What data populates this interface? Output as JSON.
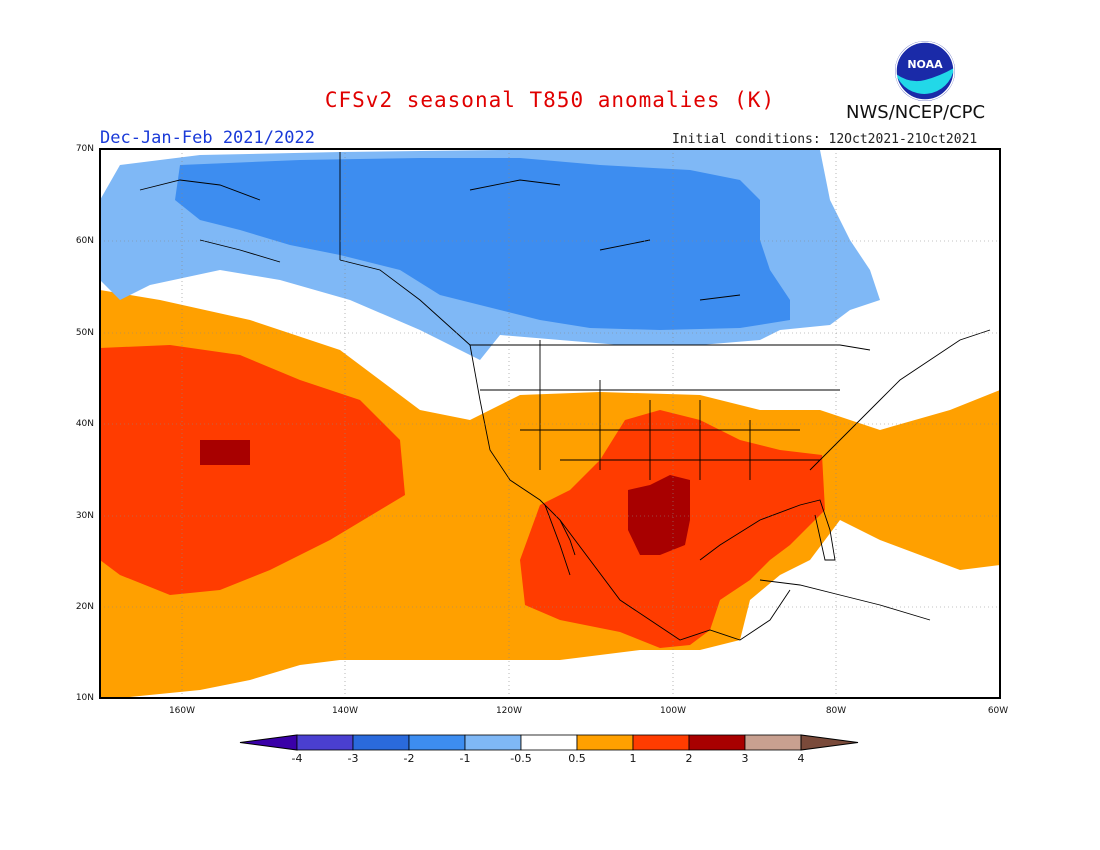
{
  "map": {
    "title": "CFSv2 seasonal T850 anomalies (K)",
    "agency": "NWS/NCEP/CPC",
    "period": "Dec-Jan-Feb 2021/2022",
    "initial_conditions": "Initial conditions: 12Oct2021-21Oct2021",
    "logo_text": "NOAA",
    "lat_labels": [
      "70N",
      "60N",
      "50N",
      "40N",
      "30N",
      "20N",
      "10N"
    ],
    "lon_labels": [
      "160W",
      "140W",
      "120W",
      "100W",
      "80W",
      "60W"
    ],
    "colorbar": {
      "labels": [
        "-4",
        "-3",
        "-2",
        "-1",
        "-0.5",
        "0.5",
        "1",
        "2",
        "3",
        "4"
      ],
      "colors": [
        "#3a00a8",
        "#4a3fd0",
        "#2a6adc",
        "#3d8df0",
        "#7fb8f6",
        "#ffffff",
        "#ffa000",
        "#ff3c00",
        "#a80000",
        "#c8a090",
        "#7a4a3a"
      ]
    }
  }
}
